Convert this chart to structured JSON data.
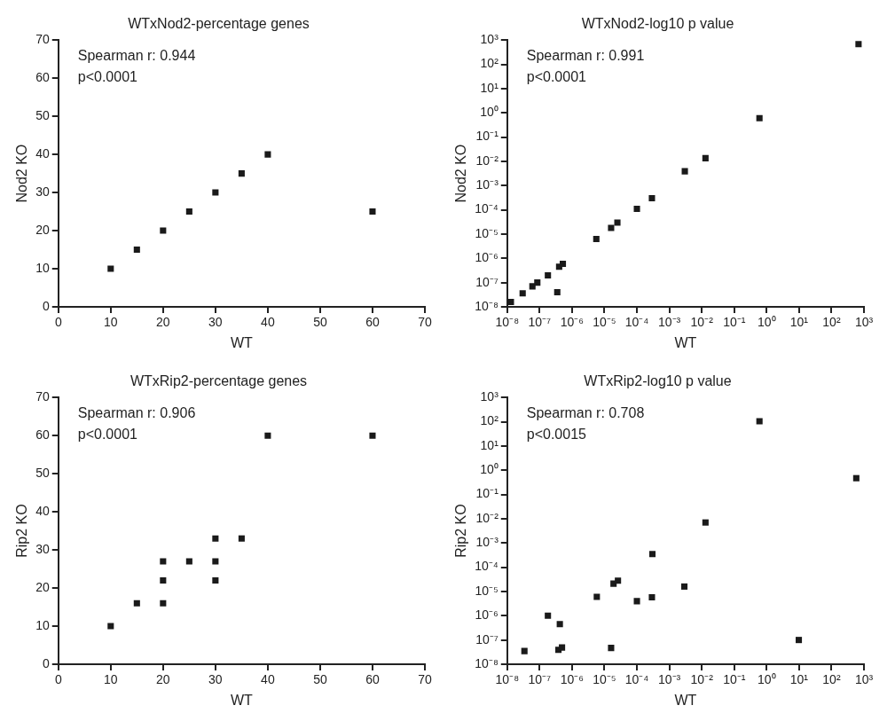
{
  "chart_data": [
    {
      "type": "scatter",
      "title": "WTxNod2-percentage genes",
      "xlabel": "WT",
      "ylabel": "Nod2 KO",
      "annotations": [
        "Spearman r: 0.944",
        "p<0.0001"
      ],
      "marker": "square",
      "grid": false,
      "legend": false,
      "xlim": [
        0,
        70
      ],
      "ylim": [
        0,
        70
      ],
      "xticks": [
        0,
        10,
        20,
        30,
        40,
        50,
        60,
        70
      ],
      "yticks": [
        0,
        10,
        20,
        30,
        40,
        50,
        60,
        70
      ],
      "series": [
        {
          "color": "#1a1a1a",
          "x": [
            10,
            15,
            20,
            25,
            30,
            35,
            40,
            60
          ],
          "values": [
            10,
            15,
            20,
            25,
            30,
            35,
            40,
            25
          ]
        }
      ]
    },
    {
      "type": "scatter",
      "title": "WTxNod2-log10 p value",
      "xlabel": "WT",
      "ylabel": "Nod2 KO",
      "annotations": [
        "Spearman r: 0.991",
        "p<0.0001"
      ],
      "marker": "square",
      "grid": false,
      "legend": false,
      "log": "xy",
      "xlim": [
        1e-08,
        1000
      ],
      "ylim": [
        1e-08,
        1000
      ],
      "xticks": [
        {
          "value": 1e-08,
          "label": "10⁻⁸"
        },
        {
          "value": 1e-07,
          "label": "10⁻⁷"
        },
        {
          "value": 1e-06,
          "label": "10⁻⁶"
        },
        {
          "value": 1e-05,
          "label": "10⁻⁵"
        },
        {
          "value": 0.0001,
          "label": "10⁻⁴"
        },
        {
          "value": 0.001,
          "label": "10⁻³"
        },
        {
          "value": 0.01,
          "label": "10⁻²"
        },
        {
          "value": 0.1,
          "label": "10⁻¹"
        },
        {
          "value": 1,
          "label": "10⁰"
        },
        {
          "value": 10,
          "label": "10¹"
        },
        {
          "value": 100,
          "label": "10²"
        },
        {
          "value": 1000,
          "label": "10³"
        }
      ],
      "yticks": [
        {
          "value": 1e-08,
          "label": "10⁻⁸"
        },
        {
          "value": 1e-07,
          "label": "10⁻⁷"
        },
        {
          "value": 1e-06,
          "label": "10⁻⁶"
        },
        {
          "value": 1e-05,
          "label": "10⁻⁵"
        },
        {
          "value": 0.0001,
          "label": "10⁻⁴"
        },
        {
          "value": 0.001,
          "label": "10⁻³"
        },
        {
          "value": 0.01,
          "label": "10⁻²"
        },
        {
          "value": 0.1,
          "label": "10⁻¹"
        },
        {
          "value": 1,
          "label": "10⁰"
        },
        {
          "value": 10,
          "label": "10¹"
        },
        {
          "value": 100,
          "label": "10²"
        },
        {
          "value": 1000,
          "label": "10³"
        }
      ],
      "series": [
        {
          "color": "#1a1a1a",
          "x": [
            1.3e-08,
            3e-08,
            6e-08,
            8.5e-08,
            1.8e-07,
            3.5e-07,
            4e-07,
            5.2e-07,
            5.6e-06,
            1.6e-05,
            2.5e-05,
            0.0001,
            0.00029,
            0.003,
            0.013,
            0.6,
            680
          ],
          "values": [
            1.6e-08,
            3.6e-08,
            7e-08,
            1e-07,
            2e-07,
            4e-08,
            4.5e-07,
            5.9e-07,
            6.3e-06,
            1.8e-05,
            3e-05,
            0.00011,
            0.0003,
            0.0039,
            0.0135,
            0.6,
            680
          ]
        }
      ]
    },
    {
      "type": "scatter",
      "title": "WTxRip2-percentage genes",
      "xlabel": "WT",
      "ylabel": "Rip2 KO",
      "annotations": [
        "Spearman r: 0.906",
        "p<0.0001"
      ],
      "marker": "square",
      "grid": false,
      "legend": false,
      "xlim": [
        0,
        70
      ],
      "ylim": [
        0,
        70
      ],
      "xticks": [
        0,
        10,
        20,
        30,
        40,
        50,
        60,
        70
      ],
      "yticks": [
        0,
        10,
        20,
        30,
        40,
        50,
        60,
        70
      ],
      "series": [
        {
          "color": "#1a1a1a",
          "x": [
            10,
            15,
            20,
            20,
            20,
            25,
            30,
            30,
            30,
            35,
            40,
            60
          ],
          "values": [
            10,
            16,
            16,
            22,
            27,
            27,
            22,
            27,
            33,
            33,
            60,
            60
          ]
        }
      ]
    },
    {
      "type": "scatter",
      "title": "WTxRip2-log10 p value",
      "xlabel": "WT",
      "ylabel": "Rip2 KO",
      "annotations": [
        "Spearman r: 0.708",
        "p<0.0015"
      ],
      "marker": "square",
      "grid": false,
      "legend": false,
      "log": "xy",
      "xlim": [
        1e-08,
        1000
      ],
      "ylim": [
        1e-08,
        1000
      ],
      "xticks": [
        {
          "value": 1e-08,
          "label": "10⁻⁸"
        },
        {
          "value": 1e-07,
          "label": "10⁻⁷"
        },
        {
          "value": 1e-06,
          "label": "10⁻⁶"
        },
        {
          "value": 1e-05,
          "label": "10⁻⁵"
        },
        {
          "value": 0.0001,
          "label": "10⁻⁴"
        },
        {
          "value": 0.001,
          "label": "10⁻³"
        },
        {
          "value": 0.01,
          "label": "10⁻²"
        },
        {
          "value": 0.1,
          "label": "10⁻¹"
        },
        {
          "value": 1,
          "label": "10⁰"
        },
        {
          "value": 10,
          "label": "10¹"
        },
        {
          "value": 100,
          "label": "10²"
        },
        {
          "value": 1000,
          "label": "10³"
        }
      ],
      "yticks": [
        {
          "value": 1e-08,
          "label": "10⁻⁸"
        },
        {
          "value": 1e-07,
          "label": "10⁻⁷"
        },
        {
          "value": 1e-06,
          "label": "10⁻⁶"
        },
        {
          "value": 1e-05,
          "label": "10⁻⁵"
        },
        {
          "value": 0.0001,
          "label": "10⁻⁴"
        },
        {
          "value": 0.001,
          "label": "10⁻³"
        },
        {
          "value": 0.01,
          "label": "10⁻²"
        },
        {
          "value": 0.1,
          "label": "10⁻¹"
        },
        {
          "value": 1,
          "label": "10⁰"
        },
        {
          "value": 10,
          "label": "10¹"
        },
        {
          "value": 100,
          "label": "10²"
        },
        {
          "value": 1000,
          "label": "10³"
        }
      ],
      "series": [
        {
          "color": "#1a1a1a",
          "x": [
            3.4e-08,
            1.8e-07,
            4.2e-07,
            3.8e-07,
            4.9e-07,
            5.8e-06,
            1.6e-05,
            1.9e-05,
            2.6e-05,
            0.0001,
            0.00029,
            0.0003,
            0.0029,
            0.013,
            0.6,
            9.8,
            580
          ],
          "values": [
            3.5e-08,
            1e-06,
            4.5e-07,
            3.9e-08,
            4.9e-08,
            6e-06,
            4.7e-08,
            2.1e-05,
            2.8e-05,
            4e-06,
            5.8e-06,
            0.00035,
            1.6e-05,
            0.007,
            105,
            1e-07,
            0.47
          ]
        }
      ]
    }
  ]
}
